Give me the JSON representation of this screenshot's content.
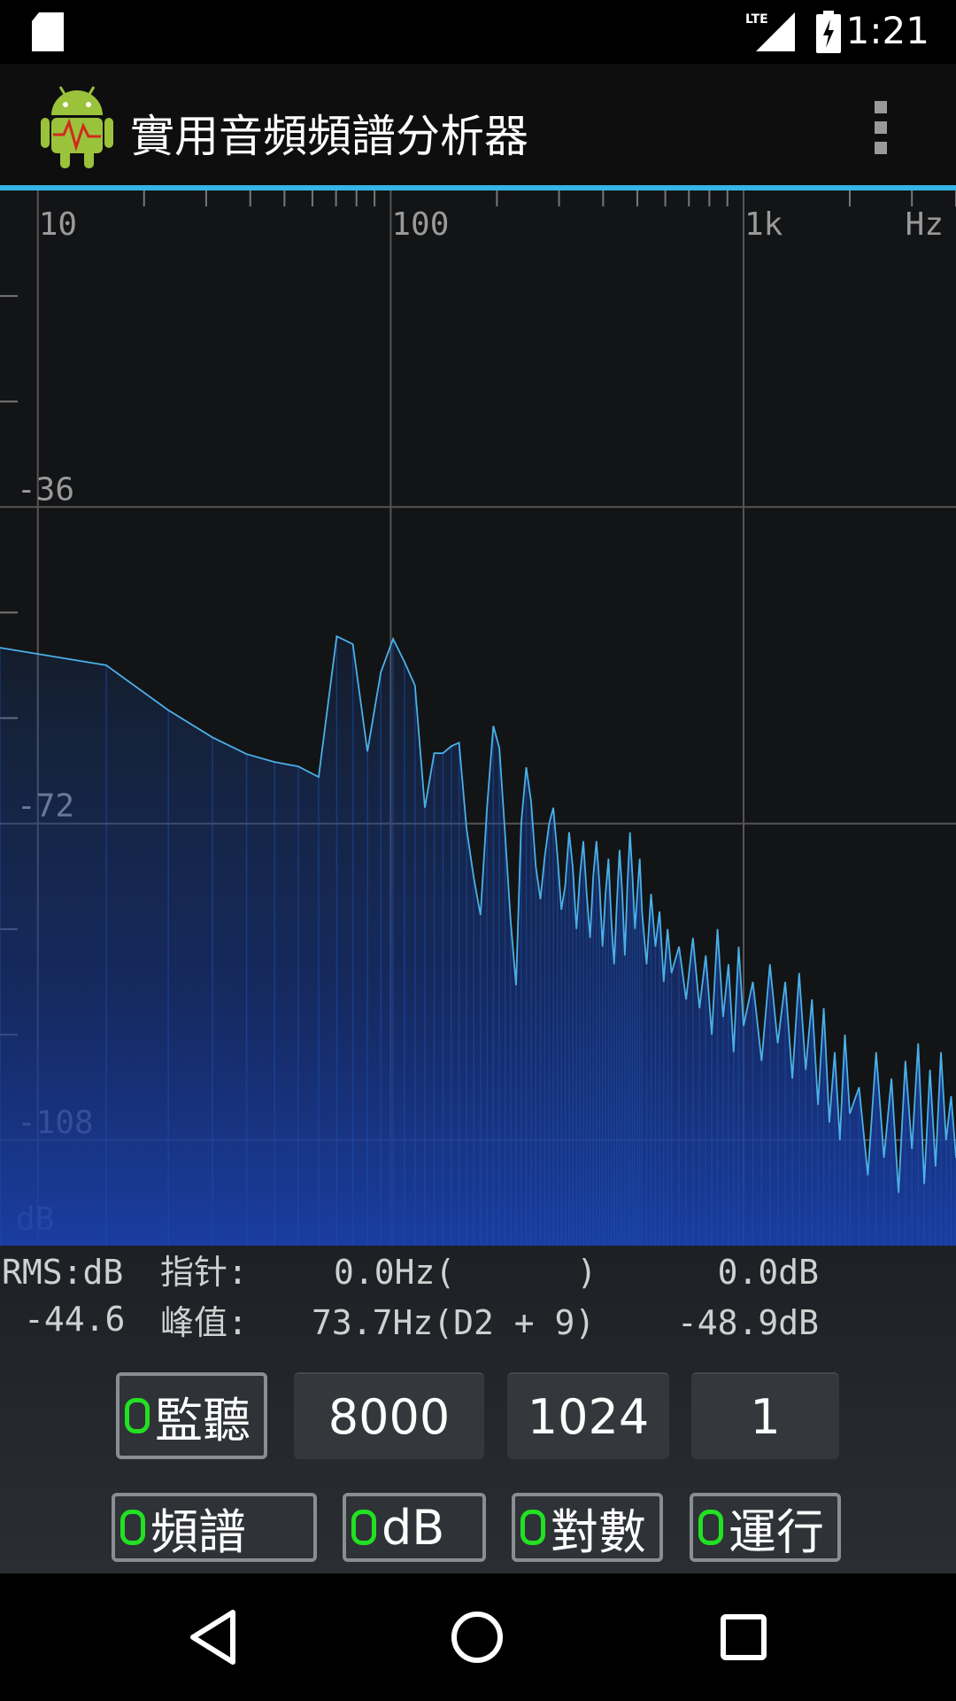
{
  "status_bar": {
    "time": "1:21"
  },
  "app_bar": {
    "title": "實用音頻頻譜分析器"
  },
  "chart_data": {
    "type": "line",
    "log_x": true,
    "grid": true,
    "color": "#4ab0e8",
    "x_unit": "Hz",
    "y_unit": "dB",
    "xlim": [
      7.8125,
      4000
    ],
    "xticks": [
      10,
      100,
      {
        "value": 1000,
        "label": "1k"
      }
    ],
    "xminorticks": [
      20,
      30,
      40,
      50,
      60,
      70,
      80,
      90,
      200,
      300,
      400,
      500,
      600,
      700,
      800,
      900,
      2000,
      3000,
      4000
    ],
    "ylim": [
      -120,
      0
    ],
    "yticks": [
      -36,
      -72,
      -108
    ],
    "yminorticks": [
      -12,
      -24,
      -48,
      -60,
      -84,
      -96
    ],
    "x": [
      7.8125,
      15.625,
      23.4375,
      31.25,
      39.0625,
      46.875,
      54.6875,
      62.5,
      70.3125,
      78.125,
      85.9375,
      93.75,
      101.5625,
      109.375,
      117.1875,
      125,
      132.8125,
      140.625,
      148.4375,
      156.25,
      164.0625,
      171.875,
      179.6875,
      187.5,
      195.3125,
      203.125,
      210.9375,
      218.75,
      226.5625,
      234.375,
      242.1875,
      250,
      257.8125,
      265.625,
      273.4375,
      281.25,
      289.0625,
      296.875,
      304.6875,
      312.5,
      320.3125,
      328.125,
      335.9375,
      343.75,
      351.5625,
      359.375,
      367.1875,
      375,
      382.8125,
      390.625,
      398.4375,
      406.25,
      414.0625,
      421.875,
      429.6875,
      437.5,
      445.3125,
      453.125,
      460.9375,
      468.75,
      476.5625,
      484.375,
      492.1875,
      500,
      507.8125,
      515.625,
      531.25,
      546.875,
      562.5,
      578.125,
      593.75,
      609.375,
      625,
      656.25,
      687.5,
      718.75,
      750,
      781.25,
      812.5,
      843.75,
      875,
      906.25,
      937.5,
      968.75,
      1000,
      1062.5,
      1125,
      1187.5,
      1250,
      1312.5,
      1375,
      1437.5,
      1500,
      1562.5,
      1625,
      1687.5,
      1750,
      1812.5,
      1875,
      1937.5,
      2000,
      2125,
      2250,
      2375,
      2500,
      2625,
      2750,
      2875,
      3000,
      3125,
      3250,
      3375,
      3500,
      3625,
      3750,
      3875,
      4000
    ],
    "values": [
      -52,
      -54,
      -59.1,
      -62.2,
      -64.1,
      -65,
      -65.5,
      -66.7,
      -50.7,
      -51.6,
      -63.8,
      -54.8,
      -51,
      -53.6,
      -56.3,
      -70.2,
      -64,
      -64,
      -63.2,
      -62.8,
      -72.6,
      -78.1,
      -82.4,
      -70.2,
      -60.9,
      -63.4,
      -73.2,
      -83.1,
      -90.4,
      -72,
      -65.6,
      -69.5,
      -76.9,
      -80.6,
      -75.7,
      -72,
      -70.2,
      -75.7,
      -81.8,
      -79,
      -73,
      -77,
      -84,
      -78,
      -74,
      -80,
      -85,
      -78,
      -74,
      -79,
      -86,
      -80,
      -76,
      -83,
      -88,
      -81,
      -75,
      -80,
      -87,
      -79,
      -73,
      -78,
      -84,
      -80,
      -76,
      -82,
      -88,
      -80,
      -86,
      -82,
      -90,
      -84,
      -89,
      -86,
      -92,
      -85,
      -93,
      -87,
      -96,
      -84,
      -94,
      -88,
      -98,
      -86,
      -95,
      -90,
      -99,
      -88,
      -97,
      -90,
      -101,
      -89,
      -100,
      -92,
      -104,
      -93,
      -106,
      -98,
      -108,
      -96,
      -105,
      -102,
      -112,
      -98,
      -110,
      -101,
      -114,
      -99,
      -109,
      -97,
      -113,
      -100,
      -111,
      -98,
      -108,
      -103,
      -110
    ]
  },
  "readout": {
    "rms_label": "RMS:dB",
    "rms_value": "-44.6",
    "cursor_label": "指针:",
    "cursor_freq": "0.0Hz(      )",
    "cursor_db": "0.0dB",
    "peak_label": "峰值:",
    "peak_freq": "73.7Hz(D2 + 9)",
    "peak_db": "-48.9dB"
  },
  "controls": {
    "monitor": "監聽",
    "sample_rate": "8000",
    "fft_length": "1024",
    "average": "1",
    "spectrum": "頻譜",
    "db": "dB",
    "log": "對數",
    "run": "運行"
  }
}
